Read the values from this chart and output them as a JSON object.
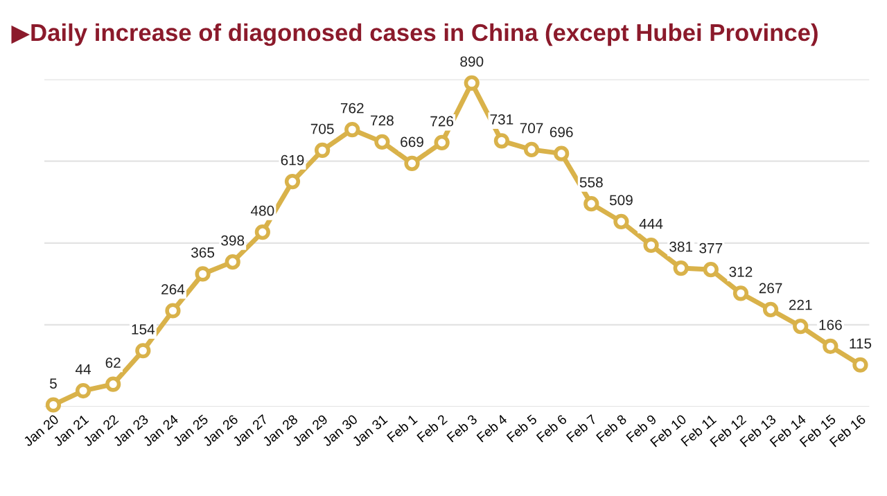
{
  "chart_data": {
    "type": "line",
    "title": "▶Daily increase of diagonosed cases in China (except Hubei Province)",
    "categories": [
      "Jan 20",
      "Jan 21",
      "Jan 22",
      "Jan 23",
      "Jan 24",
      "Jan 25",
      "Jan 26",
      "Jan 27",
      "Jan 28",
      "Jan 29",
      "Jan 30",
      "Jan 31",
      "Feb 1",
      "Feb 2",
      "Feb 3",
      "Feb 4",
      "Feb 5",
      "Feb 6",
      "Feb 7",
      "Feb 8",
      "Feb 9",
      "Feb 10",
      "Feb 11",
      "Feb 12",
      "Feb 13",
      "Feb 14",
      "Feb 15",
      "Feb 16"
    ],
    "series": [
      {
        "color": "#d9b24a",
        "values": [
          5,
          44,
          62,
          154,
          264,
          365,
          398,
          480,
          619,
          705,
          762,
          728,
          669,
          726,
          890,
          731,
          707,
          696,
          558,
          509,
          444,
          381,
          377,
          312,
          267,
          221,
          166,
          115
        ]
      }
    ],
    "ylim": [
      0,
      900
    ],
    "yticks": [
      {
        "value": 0,
        "label": null
      },
      {
        "value": 225,
        "label": null
      },
      {
        "value": 450,
        "label": null
      },
      {
        "value": 675,
        "label": null
      },
      {
        "value": 900,
        "label": null
      }
    ],
    "tick_labels": "x",
    "grid": "y",
    "marker": "circle",
    "line_style": "solid",
    "data_labels": true
  }
}
